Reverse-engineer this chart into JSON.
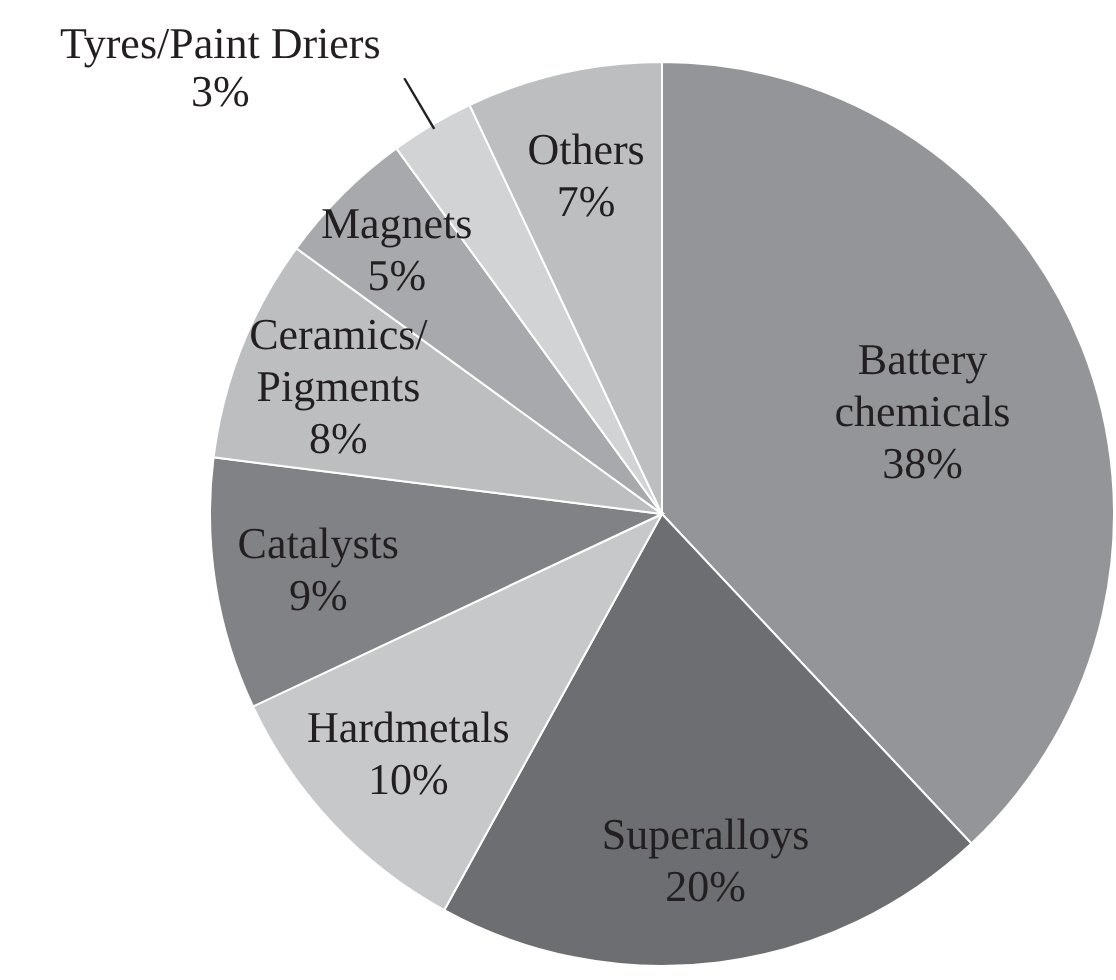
{
  "chart_data": {
    "type": "pie",
    "categories": [
      "Battery chemicals",
      "Superalloys",
      "Hardmetals",
      "Catalysts",
      "Ceramics/Pigments",
      "Magnets",
      "Tyres/Paint Driers",
      "Others"
    ],
    "values": [
      38,
      20,
      10,
      9,
      8,
      5,
      3,
      7
    ],
    "value_labels": [
      "38%",
      "20%",
      "10%",
      "9%",
      "8%",
      "5%",
      "3%",
      "7%"
    ],
    "colors": [
      "#939598",
      "#6d6e71",
      "#c7c8ca",
      "#808285",
      "#bcbec0",
      "#a7a9ac",
      "#d1d3d4",
      "#bcbec0"
    ]
  }
}
